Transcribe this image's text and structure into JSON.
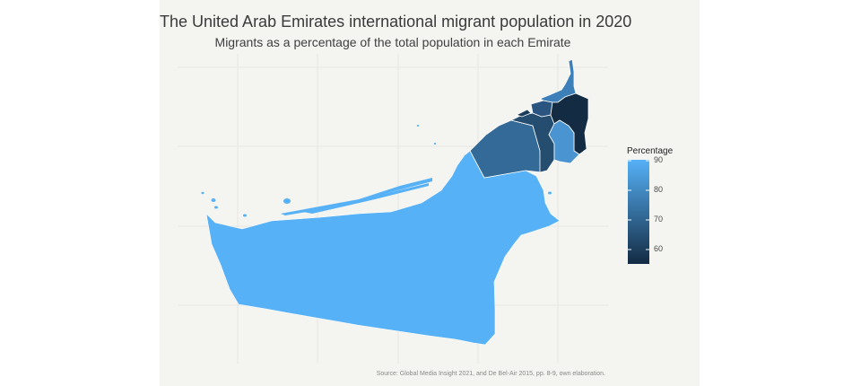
{
  "title": "The United Arab Emirates international migrant population in 2020",
  "subtitle": "Migrants as a percentage of the total population in each Emirate",
  "caption": "Source: Global Media Insight 2021, and De Bel-Air 2015, pp. 8-9, own elaboration.",
  "legend": {
    "title": "Percentage",
    "ticks": [
      "90",
      "80",
      "70",
      "60"
    ],
    "tick_values": [
      90,
      80,
      70,
      60
    ],
    "range": [
      55,
      90
    ],
    "color_low": "#132b43",
    "color_high": "#56b1f7"
  },
  "colors": {
    "panel_background": "#f4f4f1",
    "gridline": "#e6e6e2"
  }
}
